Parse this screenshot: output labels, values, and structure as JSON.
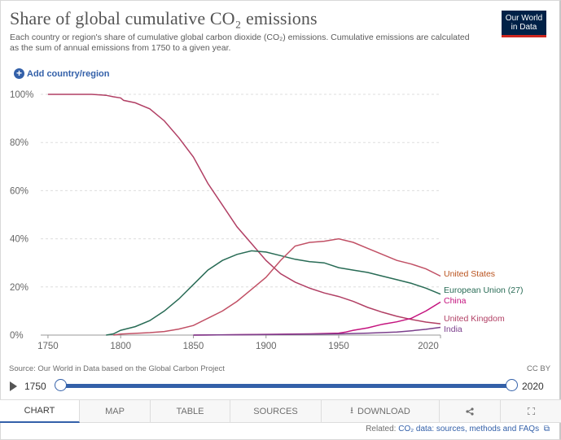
{
  "header": {
    "title": "Share of global cumulative CO₂ emissions",
    "subtitle": "Each country or region's share of cumulative global carbon dioxide (CO₂) emissions. Cumulative emissions are calculated as the sum of annual emissions from 1750 to a given year.",
    "logo_text": "Our World in Data"
  },
  "controls": {
    "add_label": "Add country/region",
    "plus_icon": "+"
  },
  "footer": {
    "source": "Source: Our World in Data based on the Global Carbon Project",
    "license": "CC BY",
    "related_prefix": "Related: ",
    "related_link": "CO₂ data: sources, methods and FAQs",
    "external_icon": "⧉"
  },
  "timeline": {
    "start_label": "1750",
    "end_label": "2020",
    "start_value": 1750,
    "end_value": 2020
  },
  "tabs": [
    {
      "label": "CHART",
      "active": true,
      "icon": ""
    },
    {
      "label": "MAP",
      "active": false,
      "icon": ""
    },
    {
      "label": "TABLE",
      "active": false,
      "icon": ""
    },
    {
      "label": "SOURCES",
      "active": false,
      "icon": ""
    },
    {
      "label": "DOWNLOAD",
      "active": false,
      "icon": "⭳"
    },
    {
      "label": "",
      "active": false,
      "icon": "share-icon"
    },
    {
      "label": "",
      "active": false,
      "icon": "expand-icon"
    }
  ],
  "chart_data": {
    "type": "line",
    "xlim": [
      1745,
      2020
    ],
    "ylim": [
      0,
      100
    ],
    "x_ticks": [
      1750,
      1800,
      1850,
      1900,
      1950,
      2020
    ],
    "y_ticks": [
      0,
      20,
      40,
      60,
      80,
      100
    ],
    "y_tick_labels": [
      "0%",
      "20%",
      "40%",
      "60%",
      "80%",
      "100%"
    ],
    "grid": "horizontal dashed",
    "legend": "inline labels at line ends",
    "series": [
      {
        "name": "United Kingdom",
        "color": "#b13f64",
        "points": [
          [
            1750,
            100
          ],
          [
            1760,
            100
          ],
          [
            1770,
            100
          ],
          [
            1780,
            100
          ],
          [
            1790,
            99.6
          ],
          [
            1795,
            99
          ],
          [
            1800,
            98.5
          ],
          [
            1802,
            97.5
          ],
          [
            1810,
            96.5
          ],
          [
            1820,
            94
          ],
          [
            1830,
            89
          ],
          [
            1840,
            82
          ],
          [
            1850,
            74
          ],
          [
            1860,
            63
          ],
          [
            1870,
            54
          ],
          [
            1880,
            45
          ],
          [
            1890,
            38
          ],
          [
            1900,
            31
          ],
          [
            1910,
            25.5
          ],
          [
            1920,
            22
          ],
          [
            1930,
            19.5
          ],
          [
            1940,
            17.5
          ],
          [
            1950,
            16
          ],
          [
            1960,
            14
          ],
          [
            1970,
            11.5
          ],
          [
            1980,
            9.5
          ],
          [
            1990,
            7.8
          ],
          [
            2000,
            6.5
          ],
          [
            2010,
            5.4
          ],
          [
            2020,
            4.7
          ]
        ]
      },
      {
        "name": "European Union (27)",
        "color": "#286b55",
        "points": [
          [
            1790,
            0
          ],
          [
            1795,
            0.5
          ],
          [
            1800,
            2
          ],
          [
            1810,
            3.5
          ],
          [
            1820,
            6
          ],
          [
            1830,
            10
          ],
          [
            1840,
            15
          ],
          [
            1850,
            21
          ],
          [
            1860,
            27
          ],
          [
            1870,
            31
          ],
          [
            1880,
            33.5
          ],
          [
            1890,
            35
          ],
          [
            1900,
            34.5
          ],
          [
            1910,
            33
          ],
          [
            1920,
            31.5
          ],
          [
            1930,
            30.5
          ],
          [
            1940,
            30
          ],
          [
            1950,
            28
          ],
          [
            1960,
            27
          ],
          [
            1970,
            26
          ],
          [
            1980,
            24.5
          ],
          [
            1990,
            23
          ],
          [
            2000,
            21.5
          ],
          [
            2010,
            19.5
          ],
          [
            2020,
            17
          ]
        ]
      },
      {
        "name": "United States",
        "color": "#c15065",
        "points": [
          [
            1795,
            0
          ],
          [
            1800,
            0.4
          ],
          [
            1820,
            1
          ],
          [
            1830,
            1.5
          ],
          [
            1840,
            2.5
          ],
          [
            1850,
            4
          ],
          [
            1860,
            7
          ],
          [
            1870,
            10
          ],
          [
            1880,
            14
          ],
          [
            1890,
            19
          ],
          [
            1900,
            24
          ],
          [
            1910,
            31
          ],
          [
            1920,
            37
          ],
          [
            1930,
            38.5
          ],
          [
            1940,
            39
          ],
          [
            1950,
            40
          ],
          [
            1960,
            38.5
          ],
          [
            1970,
            36
          ],
          [
            1980,
            33.5
          ],
          [
            1990,
            31
          ],
          [
            2000,
            29.5
          ],
          [
            2010,
            27.5
          ],
          [
            2020,
            24.5
          ]
        ]
      },
      {
        "name": "China",
        "color": "#c4137e",
        "points": [
          [
            1850,
            0
          ],
          [
            1900,
            0.3
          ],
          [
            1930,
            0.5
          ],
          [
            1950,
            0.8
          ],
          [
            1955,
            1.3
          ],
          [
            1960,
            2
          ],
          [
            1970,
            3
          ],
          [
            1980,
            4.5
          ],
          [
            1990,
            5.5
          ],
          [
            2000,
            7
          ],
          [
            2010,
            10
          ],
          [
            2020,
            13.7
          ]
        ]
      },
      {
        "name": "India",
        "color": "#7b3f8c",
        "points": [
          [
            1850,
            0
          ],
          [
            1900,
            0.2
          ],
          [
            1950,
            0.5
          ],
          [
            1970,
            0.8
          ],
          [
            1990,
            1.3
          ],
          [
            2000,
            1.8
          ],
          [
            2010,
            2.4
          ],
          [
            2020,
            3.2
          ]
        ]
      }
    ]
  }
}
